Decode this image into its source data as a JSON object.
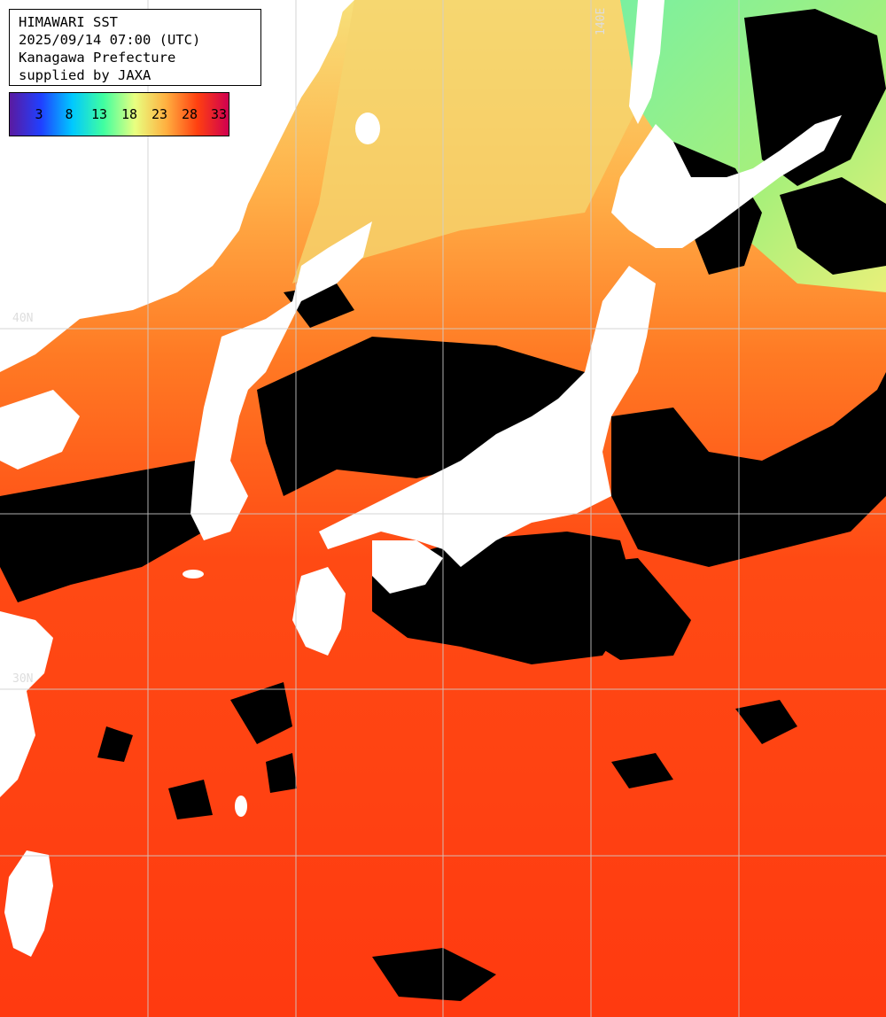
{
  "header": {
    "title": "HIMAWARI SST",
    "datetime": "2025/09/14 07:00 (UTC)",
    "region": "Kanagawa Prefecture",
    "credit": "supplied by JAXA"
  },
  "legend": {
    "ticks": [
      "3",
      "8",
      "13",
      "18",
      "23",
      "28",
      "33"
    ],
    "colors": [
      "#5a1aa0",
      "#2040ff",
      "#00c8ff",
      "#40ffa0",
      "#e8ff80",
      "#ffb040",
      "#ff4010",
      "#d00050"
    ]
  },
  "grid": {
    "lat_labels": [
      "40N",
      "30N"
    ],
    "lon_labels": [
      "140E"
    ]
  },
  "colors": {
    "land": "#ffffff",
    "cloud": "#000000",
    "warm_sea": "#ff3a10",
    "mid_sea": "#ff7a20",
    "cool_sea": "#ffd070",
    "cold_sea": "#60f0a0"
  }
}
